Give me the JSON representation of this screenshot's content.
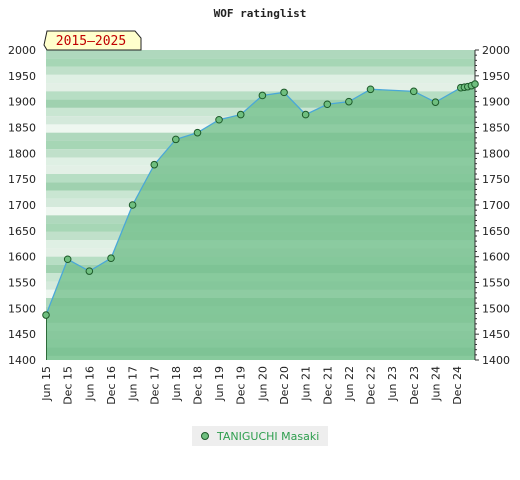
{
  "chart_data": {
    "type": "area",
    "title": "WOF ratinglist",
    "period_badge": "2015–2025",
    "y_ticks": [
      1400,
      1450,
      1500,
      1550,
      1600,
      1650,
      1700,
      1750,
      1800,
      1850,
      1900,
      1950,
      2000
    ],
    "ylim": [
      1400,
      2000
    ],
    "x_tick_labels": [
      "Jun 15",
      "Dec 15",
      "Jun 16",
      "Dec 16",
      "Jun 17",
      "Dec 17",
      "Jun 18",
      "Dec 18",
      "Jun 19",
      "Dec 19",
      "Jun 20",
      "Dec 20",
      "Jun 21",
      "Dec 21",
      "Jun 22",
      "Dec 22",
      "Jun 23",
      "Dec 23",
      "Jun 24",
      "Dec 24"
    ],
    "series": [
      {
        "name": "TANIGUCHI Masaki",
        "points": [
          [
            "2015-06-01",
            1487
          ],
          [
            "2015-12-01",
            1595
          ],
          [
            "2016-06-01",
            1572
          ],
          [
            "2016-12-01",
            1597
          ],
          [
            "2017-06-01",
            1700
          ],
          [
            "2017-12-01",
            1778
          ],
          [
            "2018-06-01",
            1827
          ],
          [
            "2018-12-01",
            1840
          ],
          [
            "2019-06-01",
            1865
          ],
          [
            "2019-12-01",
            1875
          ],
          [
            "2020-06-01",
            1912
          ],
          [
            "2020-12-01",
            1918
          ],
          [
            "2021-06-01",
            1875
          ],
          [
            "2021-12-01",
            1895
          ],
          [
            "2022-06-01",
            1900
          ],
          [
            "2022-12-01",
            1924
          ],
          [
            "2023-12-01",
            1920
          ],
          [
            "2024-06-01",
            1899
          ],
          [
            "2025-01-01",
            1927
          ],
          [
            "2025-02-01",
            1928
          ],
          [
            "2025-03-01",
            1929
          ],
          [
            "2025-04-01",
            1931
          ],
          [
            "2025-05-01",
            1934
          ]
        ]
      }
    ],
    "colors": {
      "area_fill": "#7cc494",
      "line": "#4aa8d8",
      "marker_fill": "#6fbf7f",
      "marker_stroke": "#1d5a2a",
      "legend_text": "#2e9e4e",
      "badge_fill": "#ffffcc"
    },
    "grid": true,
    "legend_position": "bottom-center"
  },
  "legend": {
    "label": "TANIGUCHI Masaki"
  }
}
